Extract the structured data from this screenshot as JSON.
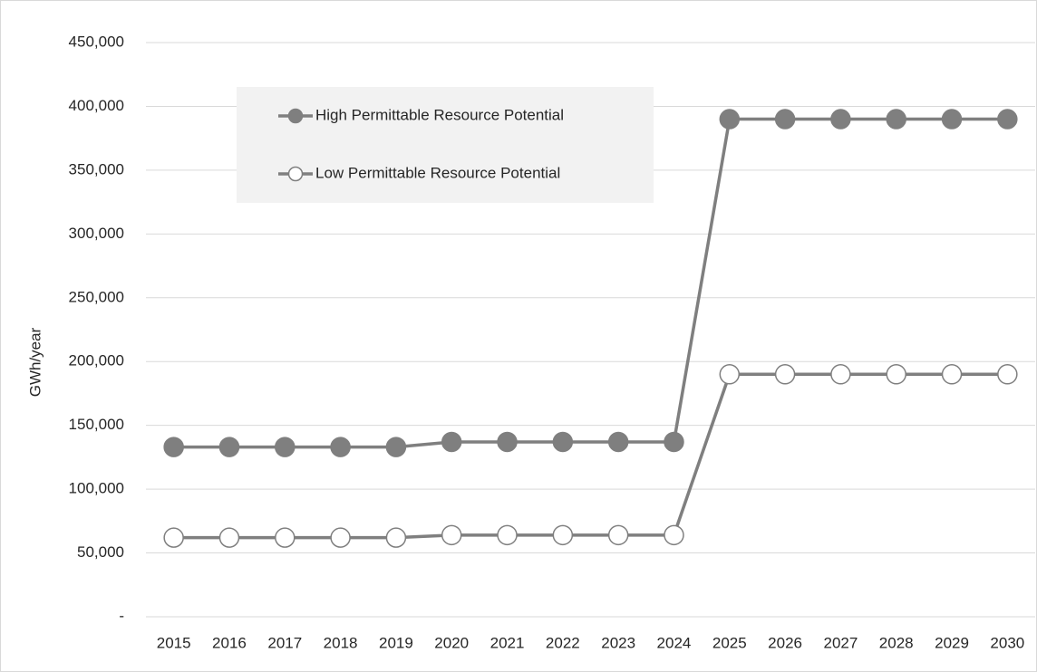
{
  "chart_data": {
    "type": "line",
    "y_label": "GWh/year",
    "categories": [
      "2015",
      "2016",
      "2017",
      "2018",
      "2019",
      "2020",
      "2021",
      "2022",
      "2023",
      "2024",
      "2025",
      "2026",
      "2027",
      "2028",
      "2029",
      "2030"
    ],
    "series": [
      {
        "name": "High Permittable Resource Potential",
        "color": "#7f7f7f",
        "marker_fill": "#7f7f7f",
        "values": [
          133000,
          133000,
          133000,
          133000,
          133000,
          137000,
          137000,
          137000,
          137000,
          137000,
          390000,
          390000,
          390000,
          390000,
          390000,
          390000
        ]
      },
      {
        "name": "Low Permittable Resource Potential",
        "color": "#7f7f7f",
        "marker_fill": "#ffffff",
        "values": [
          62000,
          62000,
          62000,
          62000,
          62000,
          64000,
          64000,
          64000,
          64000,
          64000,
          190000,
          190000,
          190000,
          190000,
          190000,
          190000
        ]
      }
    ],
    "ylim": [
      0,
      450000
    ],
    "yticks": [
      {
        "value": 0,
        "label": "-"
      },
      {
        "value": 50000,
        "label": "50,000"
      },
      {
        "value": 100000,
        "label": "100,000"
      },
      {
        "value": 150000,
        "label": "150,000"
      },
      {
        "value": 200000,
        "label": "200,000"
      },
      {
        "value": 250000,
        "label": "250,000"
      },
      {
        "value": 300000,
        "label": "300,000"
      },
      {
        "value": 350000,
        "label": "350,000"
      },
      {
        "value": 400000,
        "label": "400,000"
      },
      {
        "value": 450000,
        "label": "450,000"
      }
    ],
    "grid": true,
    "legend": "upper-left"
  }
}
